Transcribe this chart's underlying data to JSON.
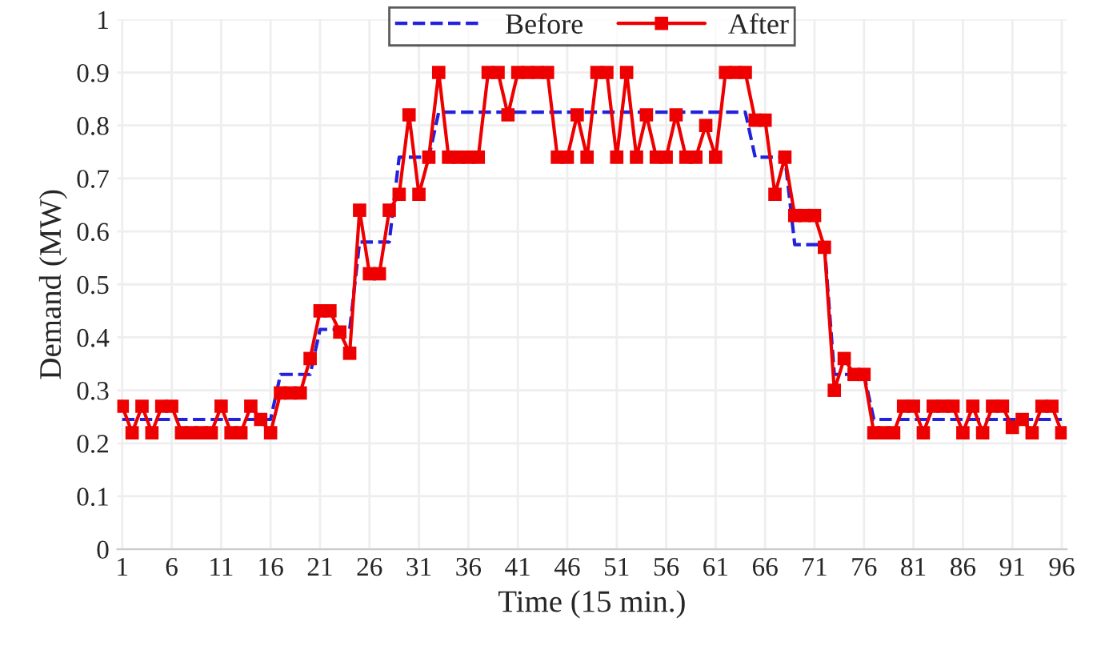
{
  "chart_data": {
    "type": "line",
    "xlabel": "Time (15 min.)",
    "ylabel": "Demand (MW)",
    "x": [
      1,
      2,
      3,
      4,
      5,
      6,
      7,
      8,
      9,
      10,
      11,
      12,
      13,
      14,
      15,
      16,
      17,
      18,
      19,
      20,
      21,
      22,
      23,
      24,
      25,
      26,
      27,
      28,
      29,
      30,
      31,
      32,
      33,
      34,
      35,
      36,
      37,
      38,
      39,
      40,
      41,
      42,
      43,
      44,
      45,
      46,
      47,
      48,
      49,
      50,
      51,
      52,
      53,
      54,
      55,
      56,
      57,
      58,
      59,
      60,
      61,
      62,
      63,
      64,
      65,
      66,
      67,
      68,
      69,
      70,
      71,
      72,
      73,
      74,
      75,
      76,
      77,
      78,
      79,
      80,
      81,
      82,
      83,
      84,
      85,
      86,
      87,
      88,
      89,
      90,
      91,
      92,
      93,
      94,
      95,
      96
    ],
    "series": [
      {
        "name": "Before",
        "color": "#2222dd",
        "line_style": "dashed",
        "marker": "none",
        "values": [
          0.245,
          0.245,
          0.245,
          0.245,
          0.245,
          0.245,
          0.245,
          0.245,
          0.245,
          0.245,
          0.245,
          0.245,
          0.245,
          0.245,
          0.245,
          0.245,
          0.33,
          0.33,
          0.33,
          0.33,
          0.415,
          0.415,
          0.415,
          0.415,
          0.58,
          0.58,
          0.58,
          0.58,
          0.74,
          0.74,
          0.74,
          0.74,
          0.825,
          0.825,
          0.825,
          0.825,
          0.825,
          0.825,
          0.825,
          0.825,
          0.825,
          0.825,
          0.825,
          0.825,
          0.825,
          0.825,
          0.825,
          0.825,
          0.825,
          0.825,
          0.825,
          0.825,
          0.825,
          0.825,
          0.825,
          0.825,
          0.825,
          0.825,
          0.825,
          0.825,
          0.825,
          0.825,
          0.825,
          0.825,
          0.74,
          0.74,
          0.74,
          0.74,
          0.575,
          0.575,
          0.575,
          0.575,
          0.33,
          0.33,
          0.33,
          0.33,
          0.245,
          0.245,
          0.245,
          0.245,
          0.245,
          0.245,
          0.245,
          0.245,
          0.245,
          0.245,
          0.245,
          0.245,
          0.245,
          0.245,
          0.245,
          0.245,
          0.245,
          0.245,
          0.245,
          0.245
        ]
      },
      {
        "name": "After",
        "color": "#ee0000",
        "line_style": "solid",
        "marker": "square",
        "values": [
          0.27,
          0.22,
          0.27,
          0.22,
          0.27,
          0.27,
          0.22,
          0.22,
          0.22,
          0.22,
          0.27,
          0.22,
          0.22,
          0.27,
          0.245,
          0.22,
          0.295,
          0.295,
          0.295,
          0.36,
          0.45,
          0.45,
          0.41,
          0.37,
          0.64,
          0.52,
          0.52,
          0.64,
          0.67,
          0.82,
          0.67,
          0.74,
          0.9,
          0.74,
          0.74,
          0.74,
          0.74,
          0.9,
          0.9,
          0.82,
          0.9,
          0.9,
          0.9,
          0.9,
          0.74,
          0.74,
          0.82,
          0.74,
          0.9,
          0.9,
          0.74,
          0.9,
          0.74,
          0.82,
          0.74,
          0.74,
          0.82,
          0.74,
          0.74,
          0.8,
          0.74,
          0.9,
          0.9,
          0.9,
          0.81,
          0.81,
          0.67,
          0.74,
          0.63,
          0.63,
          0.63,
          0.57,
          0.3,
          0.36,
          0.33,
          0.33,
          0.22,
          0.22,
          0.22,
          0.27,
          0.27,
          0.22,
          0.27,
          0.27,
          0.27,
          0.22,
          0.27,
          0.22,
          0.27,
          0.27,
          0.23,
          0.245,
          0.22,
          0.27,
          0.27,
          0.22
        ]
      }
    ],
    "xlim": [
      0.5,
      96.5
    ],
    "xticks": [
      1,
      6,
      11,
      16,
      21,
      26,
      31,
      36,
      41,
      46,
      51,
      56,
      61,
      66,
      71,
      76,
      81,
      86,
      91,
      96
    ],
    "ylim": [
      0,
      1
    ],
    "yticks": [
      0,
      0.1,
      0.2,
      0.3,
      0.4,
      0.5,
      0.6,
      0.7,
      0.8,
      0.9,
      1
    ],
    "grid": true,
    "legend": "top"
  }
}
